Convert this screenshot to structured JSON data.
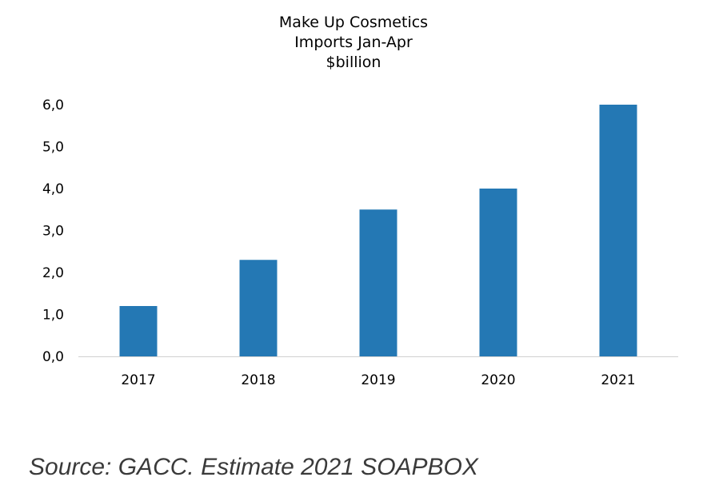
{
  "chart_data": {
    "type": "bar",
    "title_lines": [
      "Make Up Cosmetics",
      "Imports Jan-Apr",
      "$billion"
    ],
    "categories": [
      "2017",
      "2018",
      "2019",
      "2020",
      "2021"
    ],
    "values": [
      1.2,
      2.3,
      3.5,
      4.0,
      6.0
    ],
    "ylim": [
      0,
      6
    ],
    "yticks": [
      "0,0",
      "1,0",
      "2,0",
      "3,0",
      "4,0",
      "5,0",
      "6,0"
    ],
    "grid": false,
    "legend": "none",
    "bar_color": "#2478b4"
  },
  "source_text": "Source: GACC. Estimate 2021 SOAPBOX"
}
